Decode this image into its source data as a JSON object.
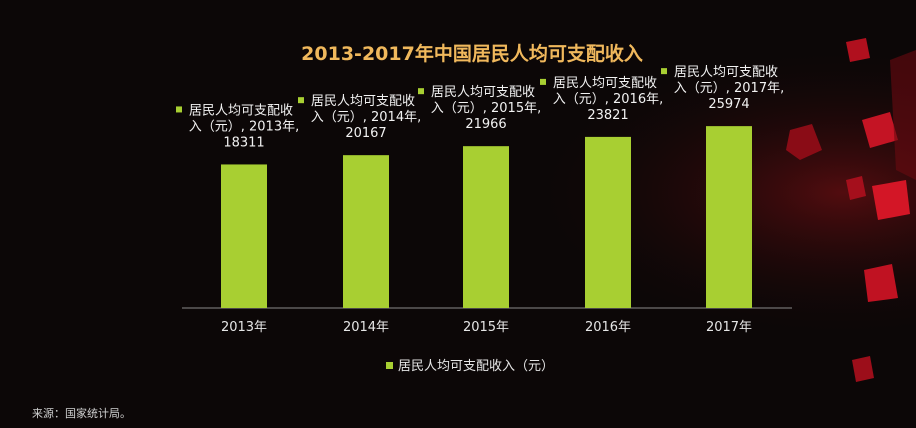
{
  "source_text": "来源：国家统计局。",
  "colors": {
    "bar": "#a8cf32",
    "title": "#f0b85c",
    "background": "#0c0707",
    "cube": "#b0101e"
  },
  "chart_data": {
    "type": "bar",
    "title": "2013-2017年中国居民人均可支配收入",
    "categories": [
      "2013年",
      "2014年",
      "2015年",
      "2016年",
      "2017年"
    ],
    "series": [
      {
        "name": "居民人均可支配收入（元）",
        "values": [
          18311,
          20167,
          21966,
          23821,
          25974
        ]
      }
    ],
    "data_label_series_prefix": "居民人均可支配收",
    "data_label_series_suffix": "入（元）, ",
    "legend_position": "bottom",
    "grid": false
  }
}
